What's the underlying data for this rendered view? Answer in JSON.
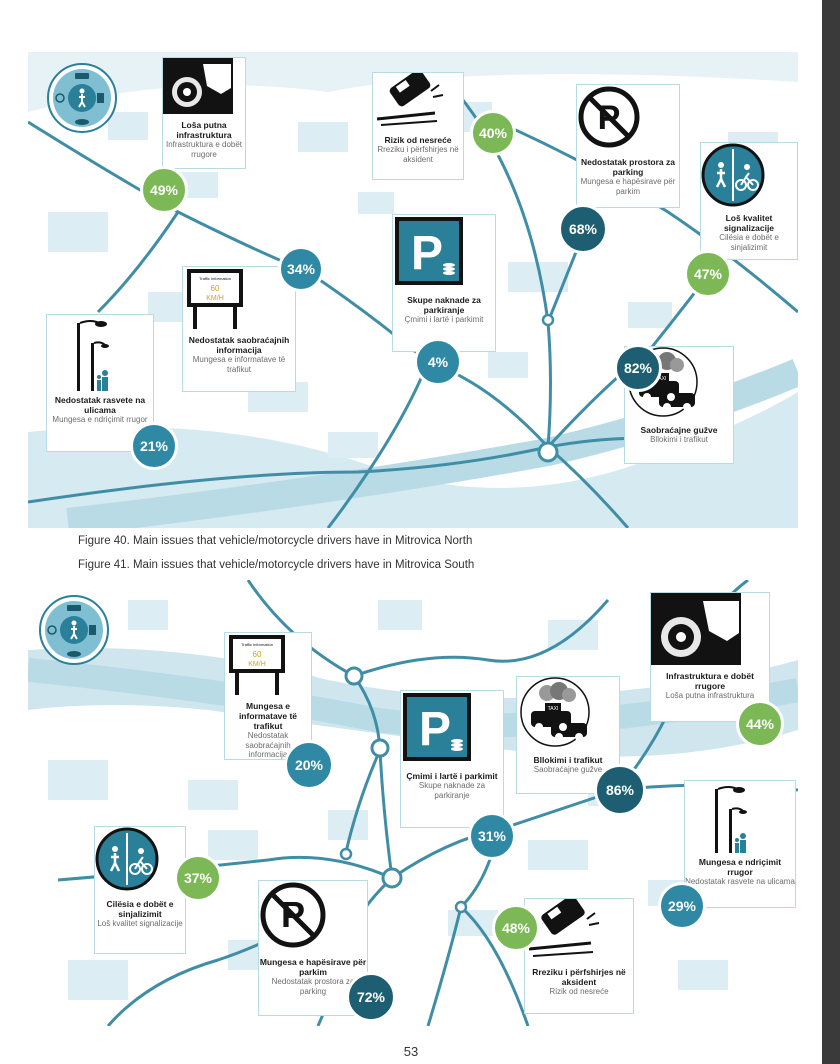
{
  "colors": {
    "green": "#7cb956",
    "blue": "#2f88a4",
    "dark": "#1d5e73",
    "road": "#3f8ea6",
    "map": "#dceef3"
  },
  "north": {
    "cards": [
      {
        "icon": "road-damage-icon",
        "title": "Loša putna infrastruktura",
        "sub": "Infrastruktura e dobët rrugore",
        "pct": "49%"
      },
      {
        "icon": "car-crash-icon",
        "title": "Rizik od nesreće",
        "sub": "Rreziku i përfshirjes në aksident",
        "pct": "40%"
      },
      {
        "icon": "no-parking-icon",
        "title": "Nedostatak prostora za parking",
        "sub": "Mungesa e hapësirave për parkim",
        "pct": "68%"
      },
      {
        "icon": "pedestrian-bike-sign-icon",
        "title": "Loš kvalitet signalizacije",
        "sub": "Cilësia e dobët e sinjalizimit",
        "pct": "47%"
      },
      {
        "icon": "traffic-info-sign-icon",
        "title": "Nedostatak saobraćajnih informacija",
        "sub": "Mungesa e informatave të trafikut",
        "pct": "34%"
      },
      {
        "icon": "parking-fee-icon",
        "title": "Skupe naknade za parkiranje",
        "sub": "Çmimi i lartë i parkimit",
        "pct": "4%"
      },
      {
        "icon": "street-light-icon",
        "title": "Nedostatak rasvete na ulicama",
        "sub": "Mungesa e ndriçimit rrugor",
        "pct": "21%"
      },
      {
        "icon": "traffic-jam-icon",
        "title": "Saobraćajne gužve",
        "sub": "Bllokimi i trafikut",
        "pct": "82%"
      }
    ]
  },
  "captions": {
    "fig40": "Figure 40. Main issues that vehicle/motorcycle drivers have in Mitrovica North",
    "fig41": "Figure 41. Main issues that vehicle/motorcycle drivers have in Mitrovica South"
  },
  "south": {
    "cards": [
      {
        "icon": "traffic-info-sign-icon",
        "title": "Mungesa e informatave të trafikut",
        "sub": "Nedostatak saobraćajnih informacija",
        "pct": "20%"
      },
      {
        "icon": "parking-fee-icon",
        "title": "Çmimi i lartë i parkimit",
        "sub": "Skupe naknade za parkiranje",
        "pct": "31%"
      },
      {
        "icon": "traffic-jam-icon",
        "title": "Bllokimi i trafikut",
        "sub": "Saobraćajne gužve",
        "pct": "86%"
      },
      {
        "icon": "road-damage-icon",
        "title": "Infrastruktura e dobët rrugore",
        "sub": "Loša putna infrastruktura",
        "pct": "44%"
      },
      {
        "icon": "pedestrian-bike-sign-icon",
        "title": "Cilësia e dobët e sinjalizimit",
        "sub": "Loš kvalitet signalizacije",
        "pct": "37%"
      },
      {
        "icon": "no-parking-icon",
        "title": "Mungesa e hapësirave për parkim",
        "sub": "Nedostatak prostora za parking",
        "pct": "72%"
      },
      {
        "icon": "car-crash-icon",
        "title": "Rreziku i përfshirjes në aksident",
        "sub": "Rizik od nesreće",
        "pct": "48%"
      },
      {
        "icon": "street-light-icon",
        "title": "Mungesa e ndriçimit rrugor",
        "sub": "Nedostatak rasvete na ulicama",
        "pct": "29%"
      }
    ]
  },
  "sign": {
    "head": "Traffic Information",
    "speed": "60",
    "unit": "KM/H",
    "taxi": "TAXI"
  },
  "page_number": "53"
}
